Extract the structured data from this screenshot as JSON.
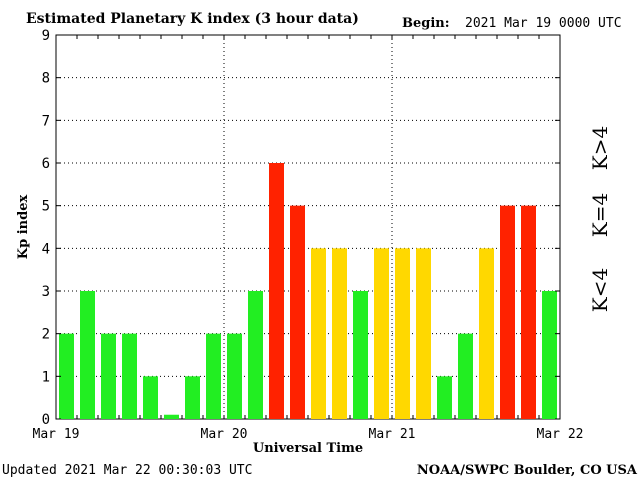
{
  "header": {
    "title": "Estimated Planetary K index (3 hour data)",
    "begin_label": "Begin:",
    "begin_value": "2021 Mar 19 0000 UTC"
  },
  "footer": {
    "updated": "Updated 2021 Mar 22 00:30:03 UTC",
    "source": "NOAA/SWPC Boulder, CO USA"
  },
  "legend": {
    "below": "K<4",
    "equal": "K=4",
    "above": "K>4"
  },
  "colors": {
    "below": "#22ee22",
    "equal": "#ffd800",
    "above": "#ff2200"
  },
  "chart_data": {
    "type": "bar",
    "title": "Estimated Planetary K index (3 hour data)",
    "xlabel": "Universal Time",
    "ylabel": "Kp index",
    "ylim": [
      0,
      9
    ],
    "yticks": [
      "0",
      "1",
      "2",
      "3",
      "4",
      "5",
      "6",
      "7",
      "8",
      "9"
    ],
    "xtick_labels": [
      "Mar 19",
      "Mar 20",
      "Mar 21",
      "Mar 22"
    ],
    "grid": true,
    "values": [
      2,
      3,
      2,
      2,
      1,
      0.1,
      1,
      2,
      2,
      3,
      6,
      5,
      4,
      4,
      3,
      4,
      4,
      4,
      1,
      2,
      4,
      5,
      5,
      3
    ]
  }
}
